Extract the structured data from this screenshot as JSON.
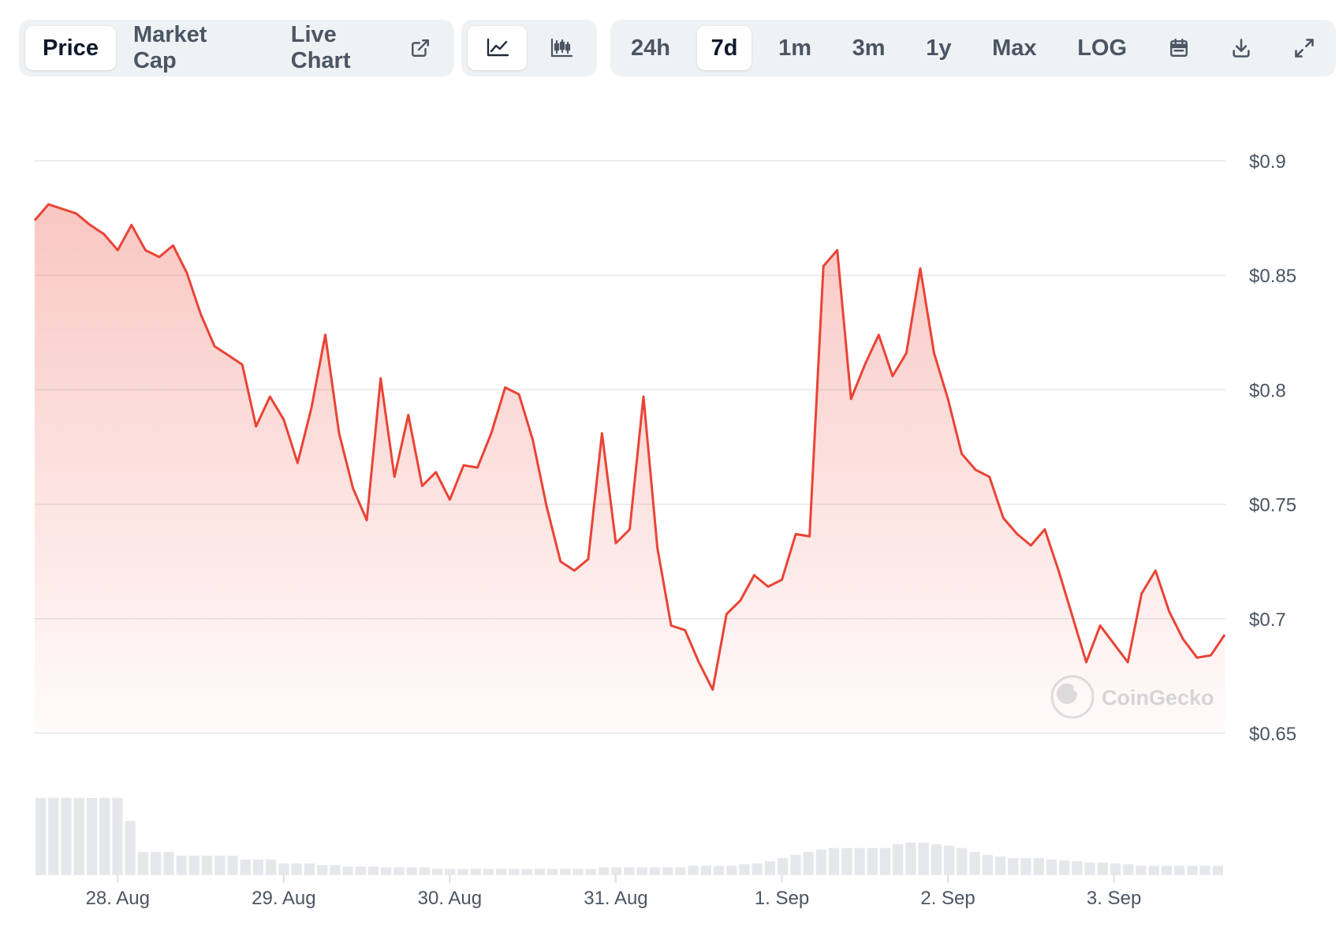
{
  "toolbar": {
    "tab_price": "Price",
    "tab_market_cap": "Market Cap",
    "tab_live_chart": "Live Chart",
    "ranges": [
      "24h",
      "7d",
      "1m",
      "3m",
      "1y",
      "Max",
      "LOG"
    ],
    "active_range": "7d",
    "active_tab": "Price",
    "active_chart_style": "line"
  },
  "watermark": "CoinGecko",
  "colors": {
    "line": "#ea4335",
    "fill": "#ea4335",
    "grid": "#e5e7eb",
    "volume": "#e5e7eb",
    "axis_text": "#4b5563"
  },
  "chart_data": {
    "type": "area",
    "title": "",
    "xlabel": "",
    "ylabel": "",
    "ylim": [
      0.65,
      0.9
    ],
    "y_ticks": [
      0.9,
      0.85,
      0.8,
      0.75,
      0.7,
      0.65
    ],
    "y_tick_labels": [
      "$0.9",
      "$0.85",
      "$0.8",
      "$0.75",
      "$0.7",
      "$0.65"
    ],
    "x_range": [
      "2024-08-27T12:00",
      "2024-09-03T16:00"
    ],
    "x_ticks": [
      "2024-08-28",
      "2024-08-29",
      "2024-08-30",
      "2024-08-31",
      "2024-09-01",
      "2024-09-02",
      "2024-09-03"
    ],
    "x_tick_labels": [
      "28. Aug",
      "29. Aug",
      "30. Aug",
      "31. Aug",
      "1. Sep",
      "2. Sep",
      "3. Sep"
    ],
    "grid": true,
    "series": [
      {
        "x": [
          "2024-08-27T12:00",
          "2024-08-27T14:00",
          "2024-08-27T16:00",
          "2024-08-27T18:00",
          "2024-08-27T20:00",
          "2024-08-27T22:00",
          "2024-08-28T00:00",
          "2024-08-28T02:00",
          "2024-08-28T04:00",
          "2024-08-28T06:00",
          "2024-08-28T08:00",
          "2024-08-28T10:00",
          "2024-08-28T12:00",
          "2024-08-28T14:00",
          "2024-08-28T16:00",
          "2024-08-28T18:00",
          "2024-08-28T20:00",
          "2024-08-28T22:00",
          "2024-08-29T00:00",
          "2024-08-29T02:00",
          "2024-08-29T04:00",
          "2024-08-29T06:00",
          "2024-08-29T08:00",
          "2024-08-29T10:00",
          "2024-08-29T12:00",
          "2024-08-29T14:00",
          "2024-08-29T16:00",
          "2024-08-29T18:00",
          "2024-08-29T20:00",
          "2024-08-29T22:00",
          "2024-08-30T00:00",
          "2024-08-30T02:00",
          "2024-08-30T04:00",
          "2024-08-30T06:00",
          "2024-08-30T08:00",
          "2024-08-30T10:00",
          "2024-08-30T12:00",
          "2024-08-30T14:00",
          "2024-08-30T16:00",
          "2024-08-30T18:00",
          "2024-08-30T20:00",
          "2024-08-30T22:00",
          "2024-08-31T00:00",
          "2024-08-31T02:00",
          "2024-08-31T04:00",
          "2024-08-31T06:00",
          "2024-08-31T08:00",
          "2024-08-31T10:00",
          "2024-08-31T12:00",
          "2024-08-31T14:00",
          "2024-08-31T16:00",
          "2024-08-31T18:00",
          "2024-08-31T20:00",
          "2024-08-31T22:00",
          "2024-09-01T00:00",
          "2024-09-01T02:00",
          "2024-09-01T04:00",
          "2024-09-01T06:00",
          "2024-09-01T08:00",
          "2024-09-01T10:00",
          "2024-09-01T12:00",
          "2024-09-01T14:00",
          "2024-09-01T16:00",
          "2024-09-01T18:00",
          "2024-09-01T20:00",
          "2024-09-01T22:00",
          "2024-09-02T00:00",
          "2024-09-02T02:00",
          "2024-09-02T04:00",
          "2024-09-02T06:00",
          "2024-09-02T08:00",
          "2024-09-02T10:00",
          "2024-09-02T12:00",
          "2024-09-02T14:00",
          "2024-09-02T16:00",
          "2024-09-02T18:00",
          "2024-09-02T20:00",
          "2024-09-02T22:00",
          "2024-09-03T00:00",
          "2024-09-03T02:00",
          "2024-09-03T04:00",
          "2024-09-03T06:00",
          "2024-09-03T08:00",
          "2024-09-03T10:00",
          "2024-09-03T12:00",
          "2024-09-03T14:00",
          "2024-09-03T16:00"
        ],
        "y": [
          0.874,
          0.881,
          0.879,
          0.877,
          0.872,
          0.868,
          0.861,
          0.872,
          0.861,
          0.858,
          0.863,
          0.851,
          0.833,
          0.819,
          0.815,
          0.811,
          0.784,
          0.797,
          0.787,
          0.768,
          0.792,
          0.824,
          0.781,
          0.757,
          0.743,
          0.805,
          0.762,
          0.789,
          0.758,
          0.764,
          0.752,
          0.767,
          0.766,
          0.781,
          0.801,
          0.798,
          0.778,
          0.749,
          0.725,
          0.721,
          0.726,
          0.781,
          0.733,
          0.739,
          0.797,
          0.731,
          0.697,
          0.695,
          0.681,
          0.669,
          0.702,
          0.708,
          0.719,
          0.714,
          0.717,
          0.737,
          0.736,
          0.854,
          0.861,
          0.796,
          0.811,
          0.824,
          0.806,
          0.816,
          0.853,
          0.816,
          0.796,
          0.772,
          0.765,
          0.762,
          0.744,
          0.737,
          0.732,
          0.739,
          0.721,
          0.701,
          0.681,
          0.697,
          0.689,
          0.681,
          0.711,
          0.721,
          0.703,
          0.691,
          0.683,
          0.684,
          0.693
        ]
      }
    ],
    "volume": [
      100,
      100,
      100,
      100,
      100,
      100,
      100,
      70,
      30,
      30,
      30,
      25,
      25,
      25,
      25,
      25,
      20,
      20,
      20,
      15,
      15,
      15,
      13,
      13,
      11,
      11,
      11,
      10,
      10,
      10,
      10,
      8,
      8,
      8,
      8,
      8,
      8,
      8,
      8,
      8,
      8,
      8,
      8,
      8,
      10,
      10,
      10,
      10,
      10,
      10,
      10,
      12,
      12,
      12,
      12,
      14,
      15,
      18,
      22,
      26,
      30,
      33,
      35,
      35,
      35,
      35,
      35,
      40,
      42,
      42,
      40,
      38,
      35,
      30,
      26,
      24,
      22,
      22,
      22,
      20,
      19,
      18,
      16,
      16,
      15,
      14,
      12,
      12,
      12,
      12,
      12,
      12,
      12
    ]
  }
}
